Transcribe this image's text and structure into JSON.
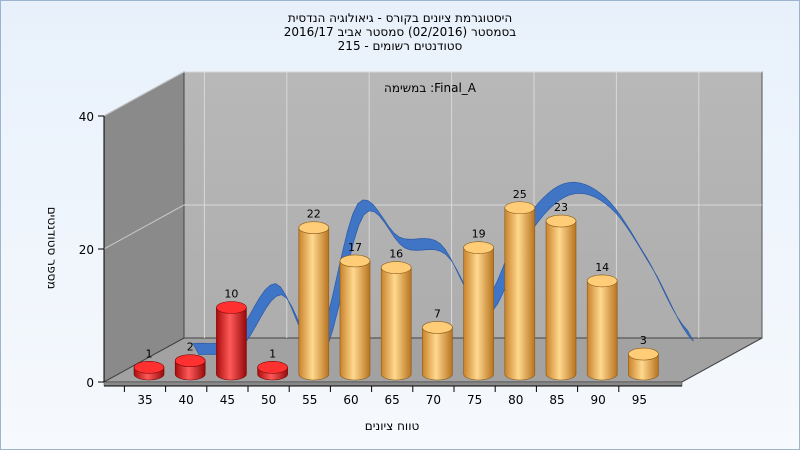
{
  "chart_data": {
    "type": "bar",
    "title_lines": [
      "היסטוגרמת ציונים בקורס - גיאולוגיה הנדסית",
      "בסמסטר  (02/2016)  סמסטר אביב 2016/17",
      "סטודנטים רשומים - 215"
    ],
    "annotation": "במשימה :Final_A",
    "xlabel": "טווח ציונים",
    "ylabel": "מספר סטודנטים",
    "categories": [
      "35",
      "40",
      "45",
      "50",
      "55",
      "60",
      "65",
      "70",
      "75",
      "80",
      "85",
      "90",
      "95"
    ],
    "values": [
      1,
      2,
      10,
      1,
      22,
      17,
      16,
      7,
      19,
      25,
      23,
      14,
      3
    ],
    "failing_categories": [
      "35",
      "40",
      "45",
      "50"
    ],
    "ylim": [
      0,
      40
    ],
    "yticks": [
      0,
      20,
      40
    ],
    "grid": true,
    "bar_colors": {
      "failing": "#e01818",
      "passing": "#f0a640"
    },
    "trend_color": "#3a72c8"
  }
}
